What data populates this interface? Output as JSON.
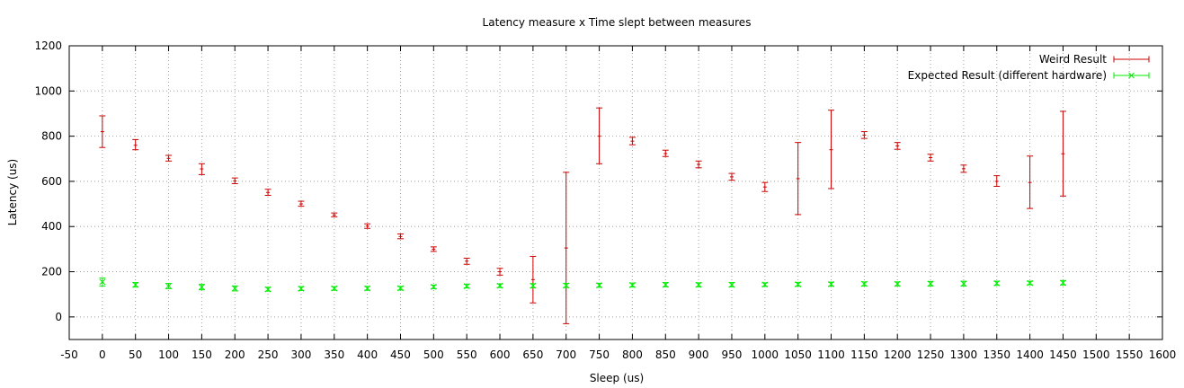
{
  "chart_data": {
    "type": "scatter",
    "title": "Latency measure x Time slept between measures",
    "xlabel": "Sleep (us)",
    "ylabel": "Latency (us)",
    "xlim": [
      -50,
      1600
    ],
    "ylim": [
      -100,
      1200
    ],
    "xticks": [
      -50,
      0,
      50,
      100,
      150,
      200,
      250,
      300,
      350,
      400,
      450,
      500,
      550,
      600,
      650,
      700,
      750,
      800,
      850,
      900,
      950,
      1000,
      1050,
      1100,
      1150,
      1200,
      1250,
      1300,
      1350,
      1400,
      1450,
      1500,
      1550,
      1600
    ],
    "yticks": [
      0,
      200,
      400,
      600,
      800,
      1000,
      1200
    ],
    "grid": true,
    "legend_position": "top-right",
    "series": [
      {
        "name": "Weird Result",
        "color": "#cc0000",
        "marker": "error-bar",
        "points": [
          {
            "x": 0,
            "y": 820,
            "lo": 750,
            "hi": 890
          },
          {
            "x": 50,
            "y": 760,
            "lo": 740,
            "hi": 785
          },
          {
            "x": 100,
            "y": 702,
            "lo": 690,
            "hi": 715
          },
          {
            "x": 150,
            "y": 655,
            "lo": 630,
            "hi": 678
          },
          {
            "x": 200,
            "y": 602,
            "lo": 590,
            "hi": 615
          },
          {
            "x": 250,
            "y": 551,
            "lo": 538,
            "hi": 565
          },
          {
            "x": 300,
            "y": 500,
            "lo": 490,
            "hi": 512
          },
          {
            "x": 350,
            "y": 451,
            "lo": 443,
            "hi": 460
          },
          {
            "x": 400,
            "y": 402,
            "lo": 392,
            "hi": 412
          },
          {
            "x": 450,
            "y": 356,
            "lo": 346,
            "hi": 367
          },
          {
            "x": 500,
            "y": 300,
            "lo": 290,
            "hi": 310
          },
          {
            "x": 550,
            "y": 247,
            "lo": 233,
            "hi": 260
          },
          {
            "x": 600,
            "y": 200,
            "lo": 185,
            "hi": 215
          },
          {
            "x": 650,
            "y": 165,
            "lo": 62,
            "hi": 268
          },
          {
            "x": 700,
            "y": 305,
            "lo": -30,
            "hi": 640
          },
          {
            "x": 750,
            "y": 800,
            "lo": 678,
            "hi": 925
          },
          {
            "x": 800,
            "y": 778,
            "lo": 762,
            "hi": 795
          },
          {
            "x": 850,
            "y": 723,
            "lo": 710,
            "hi": 738
          },
          {
            "x": 900,
            "y": 675,
            "lo": 660,
            "hi": 690
          },
          {
            "x": 950,
            "y": 620,
            "lo": 605,
            "hi": 635
          },
          {
            "x": 1000,
            "y": 575,
            "lo": 555,
            "hi": 595
          },
          {
            "x": 1050,
            "y": 612,
            "lo": 453,
            "hi": 772
          },
          {
            "x": 1100,
            "y": 740,
            "lo": 568,
            "hi": 915
          },
          {
            "x": 1150,
            "y": 805,
            "lo": 790,
            "hi": 820
          },
          {
            "x": 1200,
            "y": 757,
            "lo": 742,
            "hi": 772
          },
          {
            "x": 1250,
            "y": 705,
            "lo": 690,
            "hi": 720
          },
          {
            "x": 1300,
            "y": 656,
            "lo": 640,
            "hi": 672
          },
          {
            "x": 1350,
            "y": 600,
            "lo": 578,
            "hi": 625
          },
          {
            "x": 1400,
            "y": 595,
            "lo": 480,
            "hi": 712
          },
          {
            "x": 1450,
            "y": 722,
            "lo": 535,
            "hi": 910
          }
        ]
      },
      {
        "name": "Expected Result (different hardware)",
        "color": "#00ee00",
        "marker": "error-bar-x",
        "points": [
          {
            "x": 0,
            "y": 155,
            "lo": 137,
            "hi": 172
          },
          {
            "x": 50,
            "y": 142,
            "lo": 132,
            "hi": 152
          },
          {
            "x": 100,
            "y": 137,
            "lo": 125,
            "hi": 148
          },
          {
            "x": 150,
            "y": 132,
            "lo": 120,
            "hi": 144
          },
          {
            "x": 200,
            "y": 126,
            "lo": 115,
            "hi": 137
          },
          {
            "x": 250,
            "y": 122,
            "lo": 114,
            "hi": 131
          },
          {
            "x": 300,
            "y": 125,
            "lo": 117,
            "hi": 134
          },
          {
            "x": 350,
            "y": 126,
            "lo": 118,
            "hi": 134
          },
          {
            "x": 400,
            "y": 126,
            "lo": 118,
            "hi": 135
          },
          {
            "x": 450,
            "y": 127,
            "lo": 119,
            "hi": 135
          },
          {
            "x": 500,
            "y": 133,
            "lo": 125,
            "hi": 141
          },
          {
            "x": 550,
            "y": 136,
            "lo": 128,
            "hi": 144
          },
          {
            "x": 600,
            "y": 138,
            "lo": 130,
            "hi": 146
          },
          {
            "x": 650,
            "y": 138,
            "lo": 129,
            "hi": 147
          },
          {
            "x": 700,
            "y": 139,
            "lo": 130,
            "hi": 148
          },
          {
            "x": 750,
            "y": 140,
            "lo": 131,
            "hi": 149
          },
          {
            "x": 800,
            "y": 141,
            "lo": 132,
            "hi": 150
          },
          {
            "x": 850,
            "y": 142,
            "lo": 133,
            "hi": 152
          },
          {
            "x": 900,
            "y": 142,
            "lo": 133,
            "hi": 151
          },
          {
            "x": 950,
            "y": 142,
            "lo": 133,
            "hi": 152
          },
          {
            "x": 1000,
            "y": 143,
            "lo": 135,
            "hi": 151
          },
          {
            "x": 1050,
            "y": 144,
            "lo": 136,
            "hi": 153
          },
          {
            "x": 1100,
            "y": 145,
            "lo": 136,
            "hi": 154
          },
          {
            "x": 1150,
            "y": 146,
            "lo": 137,
            "hi": 155
          },
          {
            "x": 1200,
            "y": 146,
            "lo": 137,
            "hi": 155
          },
          {
            "x": 1250,
            "y": 147,
            "lo": 137,
            "hi": 157
          },
          {
            "x": 1300,
            "y": 147,
            "lo": 137,
            "hi": 158
          },
          {
            "x": 1350,
            "y": 149,
            "lo": 140,
            "hi": 158
          },
          {
            "x": 1400,
            "y": 150,
            "lo": 142,
            "hi": 158
          },
          {
            "x": 1450,
            "y": 151,
            "lo": 141,
            "hi": 161
          }
        ]
      }
    ]
  }
}
